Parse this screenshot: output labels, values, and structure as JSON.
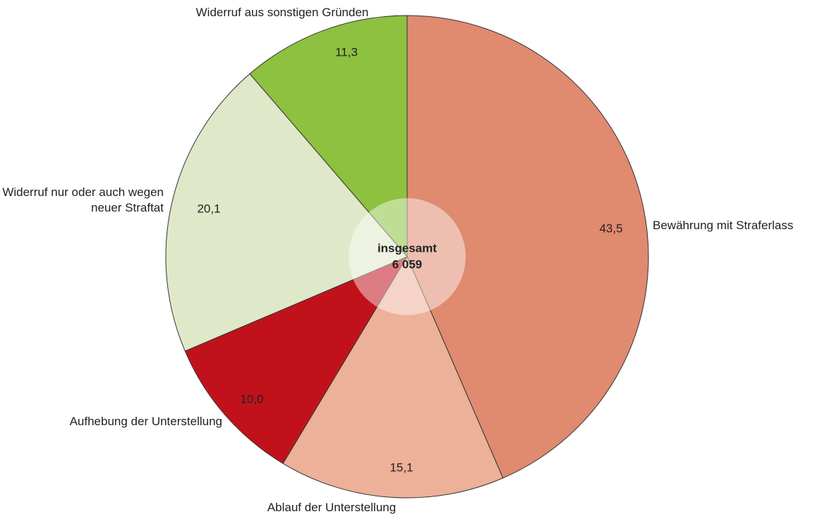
{
  "chart_data": {
    "type": "pie",
    "categories": [
      "Bewährung mit Straferlass",
      "Ablauf der Unterstellung",
      "Aufhebung der Unterstellung",
      "Widerruf nur oder auch wegen neuer Straftat",
      "Widerruf aus sonstigen Gründen"
    ],
    "values": [
      43.5,
      15.1,
      10.0,
      20.1,
      11.3
    ],
    "value_labels": [
      "43,5",
      "15,1",
      "10,0",
      "20,1",
      "11,3"
    ],
    "colors": [
      "#e08a70",
      "#edb098",
      "#c1121c",
      "#dfe8c9",
      "#8dc13f"
    ],
    "center_title": "insgesamt",
    "total": {
      "value": 6059,
      "label": "6 059"
    }
  }
}
